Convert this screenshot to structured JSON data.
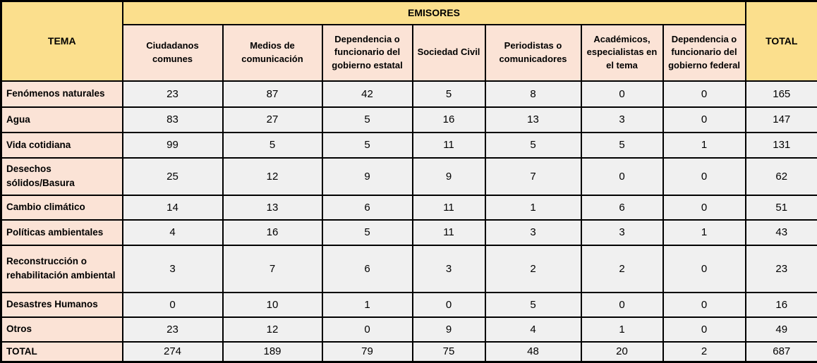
{
  "table": {
    "header": {
      "tema": "TEMA",
      "emisores": "EMISORES",
      "total": "TOTAL",
      "emitters": [
        "Ciudadanos comunes",
        "Medios de comunicación",
        "Dependencia o funcionario del gobierno estatal",
        "Sociedad Civil",
        "Periodistas o comunicadores",
        "Académicos, especialistas en el tema",
        "Dependencia o funcionario del gobierno federal"
      ]
    },
    "rows": [
      {
        "tema": "Fenómenos naturales",
        "values": [
          23,
          87,
          42,
          5,
          8,
          0,
          0
        ],
        "total": 165
      },
      {
        "tema": "Agua",
        "values": [
          83,
          27,
          5,
          16,
          13,
          3,
          0
        ],
        "total": 147
      },
      {
        "tema": "Vida cotidiana",
        "values": [
          99,
          5,
          5,
          11,
          5,
          5,
          1
        ],
        "total": 131
      },
      {
        "tema": "Desechos sólidos/Basura",
        "values": [
          25,
          12,
          9,
          9,
          7,
          0,
          0
        ],
        "total": 62
      },
      {
        "tema": "Cambio climático",
        "values": [
          14,
          13,
          6,
          11,
          1,
          6,
          0
        ],
        "total": 51
      },
      {
        "tema": "Políticas ambientales",
        "values": [
          4,
          16,
          5,
          11,
          3,
          3,
          1
        ],
        "total": 43
      },
      {
        "tema": "Reconstrucción o rehabilitación ambiental",
        "values": [
          3,
          7,
          6,
          3,
          2,
          2,
          0
        ],
        "total": 23
      },
      {
        "tema": "Desastres Humanos",
        "values": [
          0,
          10,
          1,
          0,
          5,
          0,
          0
        ],
        "total": 16
      },
      {
        "tema": "Otros",
        "values": [
          23,
          12,
          0,
          9,
          4,
          1,
          0
        ],
        "total": 49
      }
    ],
    "total_row": {
      "tema": "TOTAL",
      "values": [
        274,
        189,
        79,
        75,
        48,
        20,
        2
      ],
      "total": 687
    },
    "colors": {
      "header_yellow": "#FBDF8D",
      "header_peach": "#FBE3D6",
      "cell_gray": "#F0F0F0",
      "border_black": "#000000"
    }
  }
}
